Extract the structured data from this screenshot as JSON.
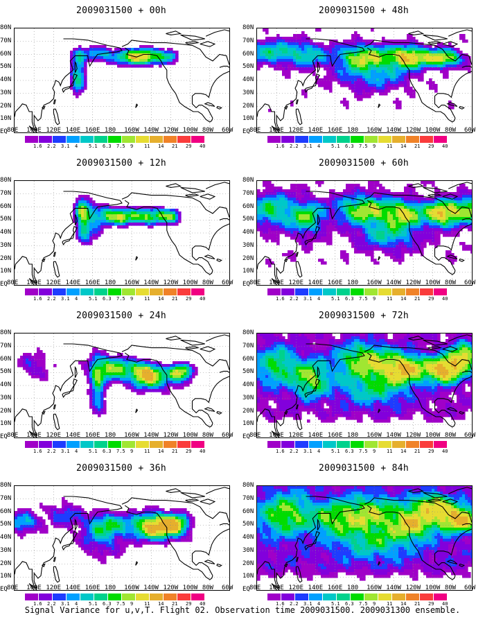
{
  "palette": {
    "colors": [
      "#a000c8",
      "#8200dc",
      "#1e3cff",
      "#00a0ff",
      "#00c8c8",
      "#00d28c",
      "#00dc00",
      "#a0e632",
      "#e6dc32",
      "#e6af2d",
      "#f08228",
      "#fa3c3c",
      "#f00082"
    ],
    "labels": [
      "1.6",
      "2.2",
      "3.1",
      "4",
      "5.1",
      "6.3",
      "7.5",
      "9",
      "11",
      "14",
      "21",
      "29",
      "40"
    ]
  },
  "axes": {
    "lat_labels": [
      "80N",
      "70N",
      "60N",
      "50N",
      "40N",
      "30N",
      "20N",
      "10N",
      "EQ"
    ],
    "lon_labels": [
      "80E",
      "100E",
      "120E",
      "140E",
      "160E",
      "180",
      "160W",
      "140W",
      "120W",
      "100W",
      "80W",
      "60W"
    ]
  },
  "panels": [
    {
      "title": "2009031500 + 00h",
      "col": 0,
      "row": 0,
      "level": 0
    },
    {
      "title": "2009031500 + 12h",
      "col": 0,
      "row": 1,
      "level": 1
    },
    {
      "title": "2009031500 + 24h",
      "col": 0,
      "row": 2,
      "level": 2
    },
    {
      "title": "2009031500 + 36h",
      "col": 0,
      "row": 3,
      "level": 3
    },
    {
      "title": "2009031500 + 48h",
      "col": 1,
      "row": 0,
      "level": 4
    },
    {
      "title": "2009031500 + 60h",
      "col": 1,
      "row": 1,
      "level": 5
    },
    {
      "title": "2009031500 + 72h",
      "col": 1,
      "row": 2,
      "level": 6
    },
    {
      "title": "2009031500 + 84h",
      "col": 1,
      "row": 3,
      "level": 7
    }
  ],
  "footer": "Signal Variance for u,v,T. Flight 02. Observation time 2009031500. 2009031300 ensemble."
}
